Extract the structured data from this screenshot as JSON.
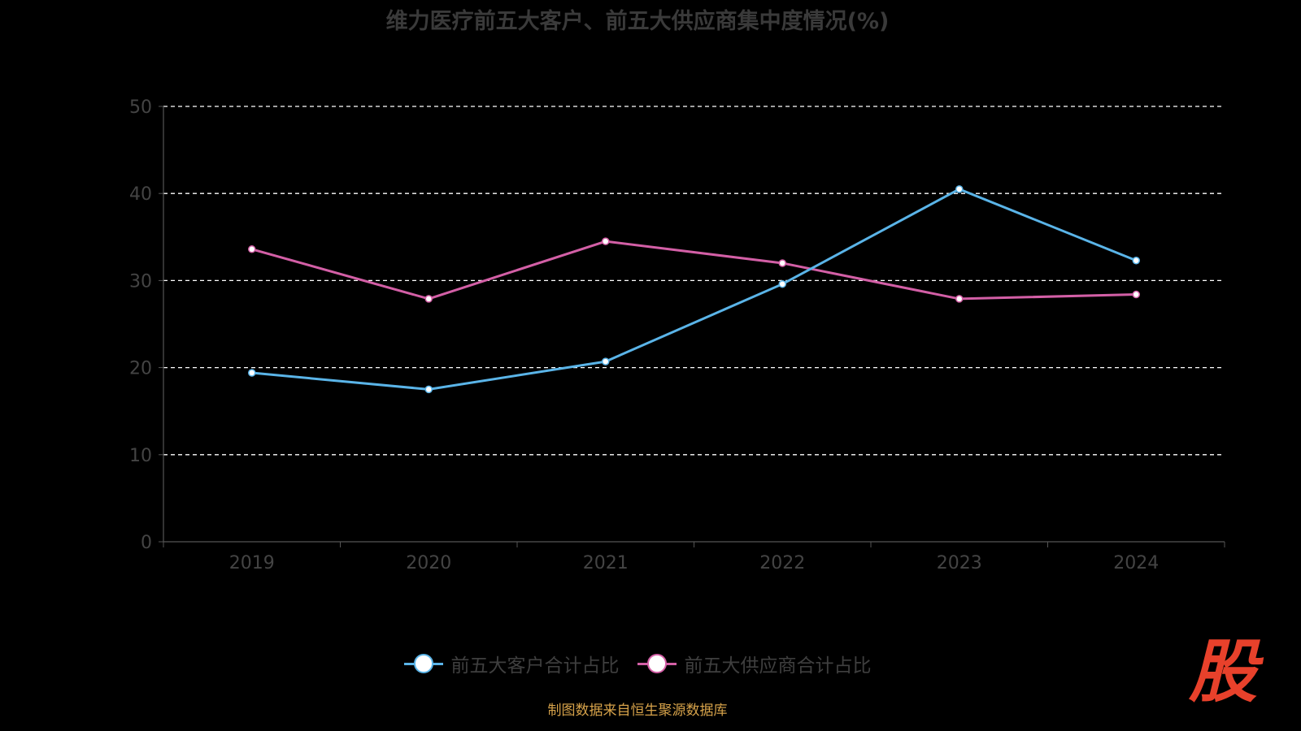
{
  "title": "维力医疗前五大客户、前五大供应商集中度情况(%)",
  "source": "制图数据来自恒生聚源数据库",
  "logo_text": "股",
  "colors": {
    "background": "#000000",
    "customers": "#5ab4e8",
    "suppliers": "#d35fa6",
    "axis": "#555555",
    "tick_label": "#444444",
    "grid": "#ffffff"
  },
  "chart_data": {
    "type": "line",
    "title": "维力医疗前五大客户、前五大供应商集中度情况(%)",
    "xlabel": "",
    "ylabel": "",
    "categories": [
      "2019",
      "2020",
      "2021",
      "2022",
      "2023",
      "2024"
    ],
    "ylim": [
      0,
      50
    ],
    "yticks": [
      0,
      10,
      20,
      30,
      40,
      50
    ],
    "grid": true,
    "grid_style": "dashed",
    "legend_position": "bottom",
    "series": [
      {
        "name": "前五大客户合计占比",
        "color": "#5ab4e8",
        "values": [
          19.4,
          17.5,
          20.7,
          29.6,
          40.5,
          32.3
        ]
      },
      {
        "name": "前五大供应商合计占比",
        "color": "#d35fa6",
        "values": [
          33.6,
          27.9,
          34.5,
          32.0,
          27.9,
          28.4
        ]
      }
    ]
  }
}
